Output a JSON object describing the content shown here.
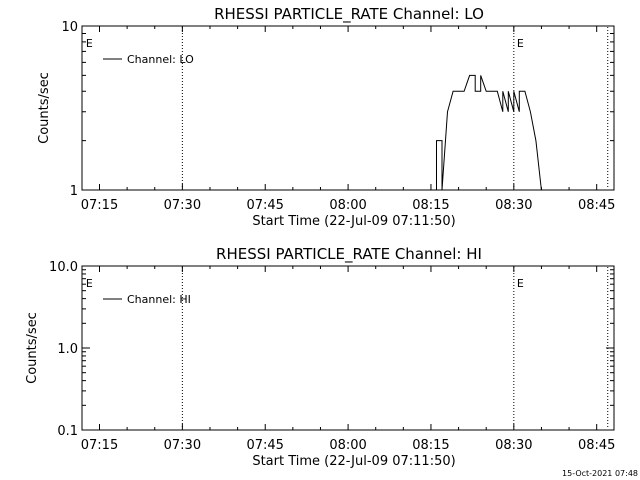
{
  "footer": {
    "timestamp": "15-Oct-2021 07:48"
  },
  "chart_data": [
    {
      "type": "line",
      "title": "RHESSI PARTICLE_RATE Channel: LO",
      "xlabel": "Start Time (22-Jul-09 07:11:50)",
      "ylabel": "Counts/sec",
      "xticks": [
        "07:15",
        "07:30",
        "07:45",
        "08:00",
        "08:15",
        "08:30",
        "08:45"
      ],
      "yscale": "log",
      "ylim": [
        1,
        10
      ],
      "yticks": [
        "1",
        "10"
      ],
      "legend": {
        "position": "top-left",
        "entries": [
          "Channel: LO"
        ]
      },
      "event_marker_label": "E",
      "event_marker_lines": [
        "07:30",
        "08:30",
        "08:47"
      ],
      "event_marker_labels_at": [
        "07:12",
        "08:30"
      ],
      "series": [
        {
          "name": "Channel: LO",
          "x": [
            "08:16",
            "08:16",
            "08:17",
            "08:17",
            "08:18",
            "08:19",
            "08:20",
            "08:21",
            "08:22",
            "08:23",
            "08:23",
            "08:24",
            "08:24",
            "08:25",
            "08:26",
            "08:27",
            "08:28",
            "08:28",
            "08:29",
            "08:29",
            "08:30",
            "08:30",
            "08:31",
            "08:31",
            "08:32",
            "08:33",
            "08:34",
            "08:35"
          ],
          "y": [
            1,
            2,
            2,
            1,
            3,
            4,
            4,
            4,
            5,
            5,
            4,
            4,
            5,
            4,
            4,
            4,
            3,
            4,
            3,
            4,
            3,
            4,
            3,
            4,
            4,
            3,
            2,
            1
          ]
        }
      ]
    },
    {
      "type": "line",
      "title": "RHESSI PARTICLE_RATE Channel: HI",
      "xlabel": "Start Time (22-Jul-09 07:11:50)",
      "ylabel": "Counts/sec",
      "xticks": [
        "07:15",
        "07:30",
        "07:45",
        "08:00",
        "08:15",
        "08:30",
        "08:45"
      ],
      "yscale": "log",
      "ylim": [
        0.1,
        10
      ],
      "yticks": [
        "0.1",
        "1.0",
        "10.0"
      ],
      "legend": {
        "position": "top-left",
        "entries": [
          "Channel: HI"
        ]
      },
      "event_marker_label": "E",
      "event_marker_lines": [
        "07:30",
        "08:30",
        "08:47"
      ],
      "event_marker_labels_at": [
        "07:12",
        "08:30"
      ],
      "series": [
        {
          "name": "Channel: HI",
          "x": [],
          "y": []
        }
      ]
    }
  ]
}
